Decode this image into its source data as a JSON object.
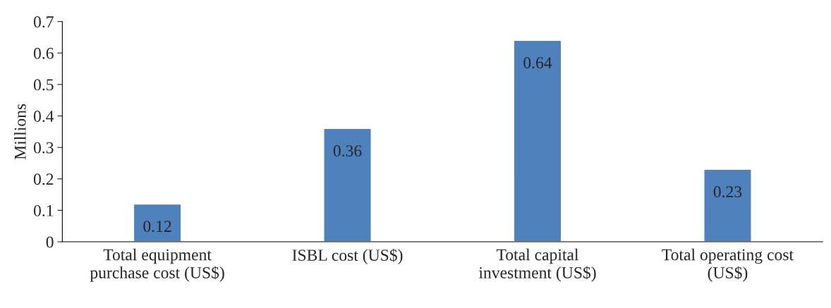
{
  "chart_data": {
    "type": "bar",
    "ylabel": "Millions",
    "categories": [
      "Total equipment\npurchase cost (US$)",
      "ISBL cost (US$)",
      "Total capital\ninvestment (US$)",
      "Total operating cost\n(US$)"
    ],
    "values": [
      0.12,
      0.36,
      0.64,
      0.23
    ],
    "color": "#4f81bd",
    "ylim": [
      0,
      0.7
    ],
    "yticks": [
      0,
      0.1,
      0.2,
      0.3,
      0.4,
      0.5,
      0.6,
      0.7
    ],
    "data_labels": true,
    "grid": false,
    "legend": false
  }
}
